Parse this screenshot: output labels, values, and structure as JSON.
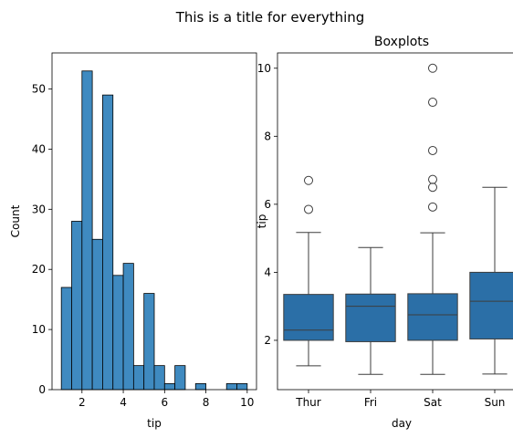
{
  "suptitle": "This is a title for everything",
  "colors": {
    "bar_fill": "#3f8ac0",
    "box_fill": "#2b6fa7",
    "line": "#3d3d3d"
  },
  "chart_data": [
    {
      "type": "bar",
      "title": "",
      "xlabel": "tip",
      "ylabel": "Count",
      "xlim": [
        0.55,
        10.45
      ],
      "ylim": [
        0,
        56
      ],
      "xticks": [
        2,
        4,
        6,
        8,
        10
      ],
      "yticks": [
        0,
        10,
        20,
        30,
        40,
        50
      ],
      "bin_edges": [
        1.0,
        1.5,
        2.0,
        2.5,
        3.0,
        3.5,
        4.0,
        4.5,
        5.0,
        5.5,
        6.0,
        6.5,
        7.0,
        7.5,
        8.0,
        8.5,
        9.0,
        9.5,
        10.0
      ],
      "values": [
        17,
        28,
        53,
        25,
        49,
        19,
        21,
        4,
        16,
        4,
        1,
        4,
        0,
        1,
        0,
        0,
        1,
        1
      ]
    },
    {
      "type": "box",
      "title": "Boxplots",
      "xlabel": "day",
      "ylabel": "tip",
      "categories": [
        "Thur",
        "Fri",
        "Sat",
        "Sun"
      ],
      "ylim": [
        0.55,
        10.45
      ],
      "yticks": [
        2,
        4,
        6,
        8,
        10
      ],
      "boxes": [
        {
          "whisker_low": 1.25,
          "q1": 2.0,
          "median": 2.3,
          "q3": 3.35,
          "whisker_high": 5.17,
          "fliers": [
            5.85,
            6.7
          ]
        },
        {
          "whisker_low": 1.0,
          "q1": 1.96,
          "median": 3.0,
          "q3": 3.36,
          "whisker_high": 4.73,
          "fliers": []
        },
        {
          "whisker_low": 1.0,
          "q1": 2.0,
          "median": 2.75,
          "q3": 3.37,
          "whisker_high": 5.16,
          "fliers": [
            5.92,
            6.5,
            6.73,
            7.58,
            9.0,
            10.0
          ]
        },
        {
          "whisker_low": 1.01,
          "q1": 2.04,
          "median": 3.15,
          "q3": 4.0,
          "whisker_high": 6.5,
          "fliers": []
        }
      ]
    }
  ]
}
